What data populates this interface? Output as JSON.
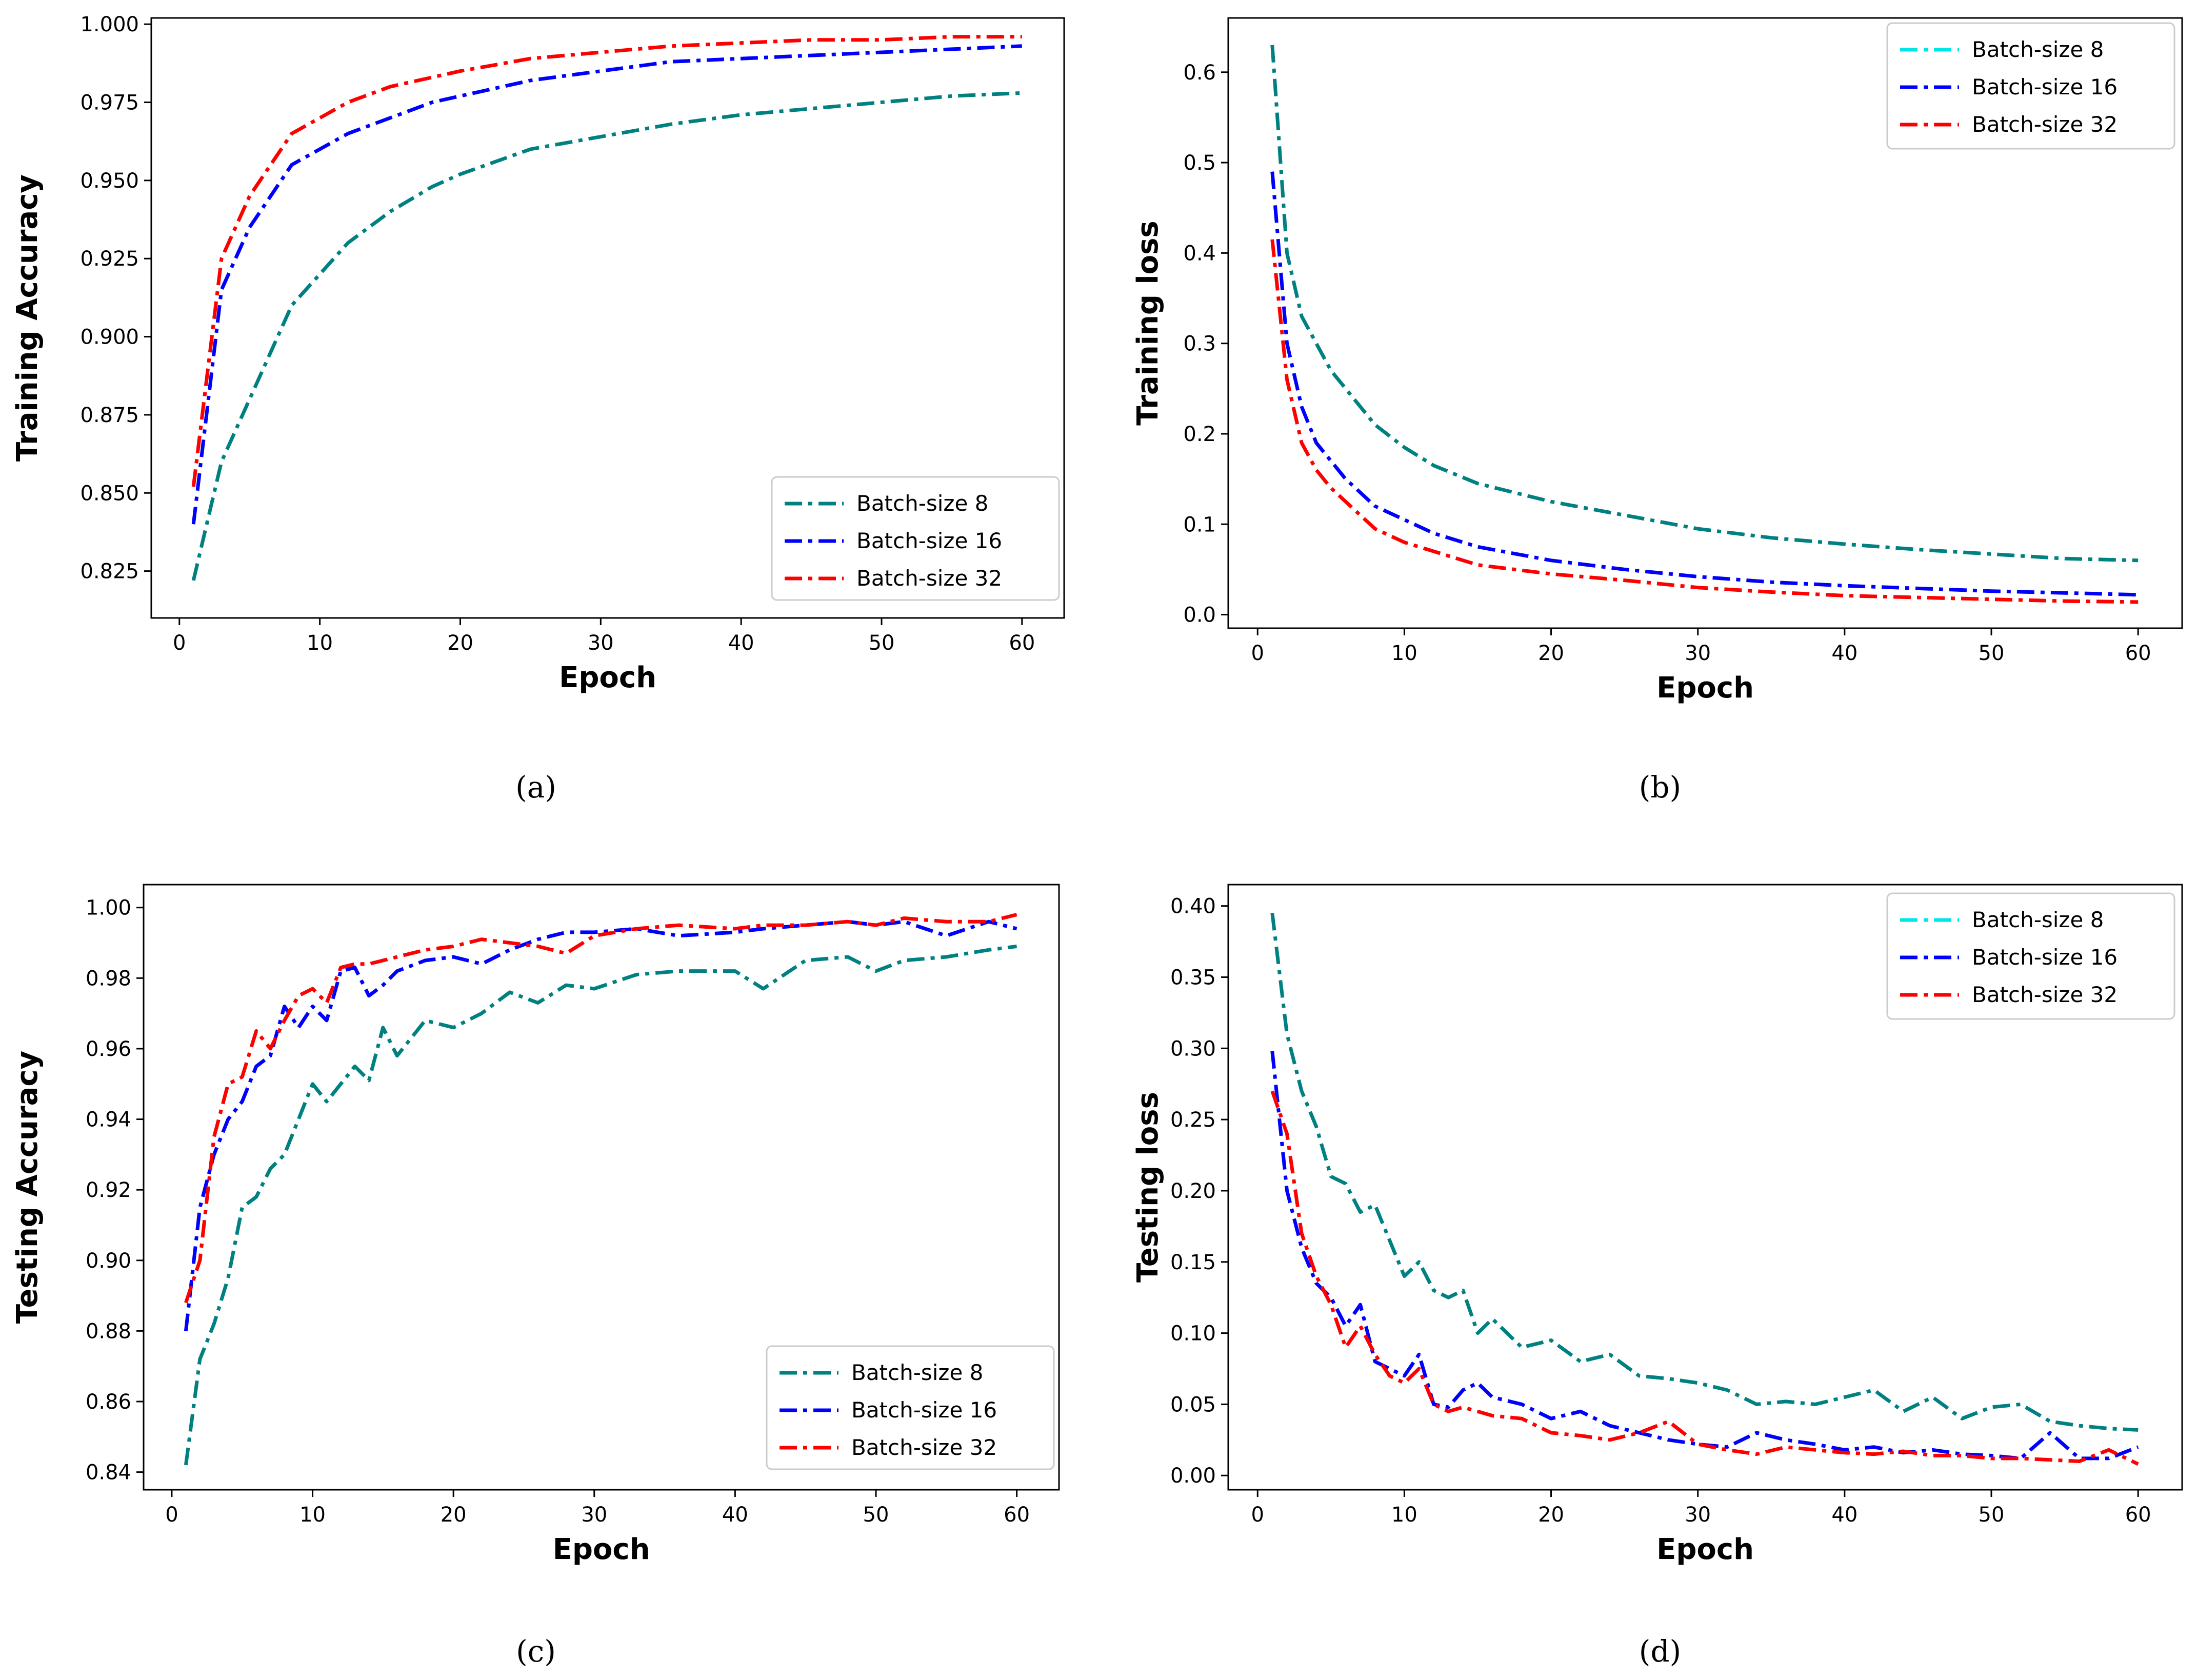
{
  "panels": [
    {
      "caption": "(a)"
    },
    {
      "caption": "(b)"
    },
    {
      "caption": "(c)"
    },
    {
      "caption": "(d)"
    }
  ],
  "colors": {
    "bs8_dark": "#008080",
    "bs8_light": "#00E5E5",
    "bs16": "#0000FF",
    "bs32": "#FF0000"
  },
  "chart_data": [
    {
      "type": "line",
      "xlabel": "Epoch",
      "ylabel": "Training Accuracy",
      "xlim": [
        -2,
        63
      ],
      "ylim": [
        0.81,
        1.002
      ],
      "xticks": [
        "0",
        "10",
        "20",
        "30",
        "40",
        "50",
        "60"
      ],
      "yticks": [
        "0.825",
        "0.850",
        "0.875",
        "0.900",
        "0.925",
        "0.950",
        "0.975",
        "1.000"
      ],
      "legend_position": "bottom-right",
      "x": [
        1,
        3,
        5,
        8,
        10,
        12,
        15,
        18,
        20,
        25,
        30,
        35,
        40,
        45,
        50,
        55,
        60
      ],
      "series": [
        {
          "name": "Batch-size 8",
          "values": [
            0.822,
            0.86,
            0.88,
            0.91,
            0.92,
            0.93,
            0.94,
            0.948,
            0.952,
            0.96,
            0.964,
            0.968,
            0.971,
            0.973,
            0.975,
            0.977,
            0.978
          ]
        },
        {
          "name": "Batch-size 16",
          "values": [
            0.84,
            0.915,
            0.935,
            0.955,
            0.96,
            0.965,
            0.97,
            0.975,
            0.977,
            0.982,
            0.985,
            0.988,
            0.989,
            0.99,
            0.991,
            0.992,
            0.993
          ]
        },
        {
          "name": "Batch-size 32",
          "values": [
            0.852,
            0.925,
            0.945,
            0.965,
            0.97,
            0.975,
            0.98,
            0.983,
            0.985,
            0.989,
            0.991,
            0.993,
            0.994,
            0.995,
            0.995,
            0.996,
            0.996
          ]
        }
      ]
    },
    {
      "type": "line",
      "xlabel": "Epoch",
      "ylabel": "Training loss",
      "xlim": [
        -2,
        63
      ],
      "ylim": [
        -0.015,
        0.66
      ],
      "xticks": [
        "0",
        "10",
        "20",
        "30",
        "40",
        "50",
        "60"
      ],
      "yticks": [
        "0.0",
        "0.1",
        "0.2",
        "0.3",
        "0.4",
        "0.5",
        "0.6"
      ],
      "legend_position": "top-right",
      "x": [
        1,
        2,
        3,
        4,
        5,
        6,
        8,
        10,
        12,
        15,
        20,
        25,
        30,
        35,
        40,
        45,
        50,
        55,
        60
      ],
      "series": [
        {
          "name": "Batch-size 8",
          "values": [
            0.63,
            0.4,
            0.33,
            0.3,
            0.27,
            0.25,
            0.21,
            0.185,
            0.165,
            0.145,
            0.125,
            0.11,
            0.095,
            0.085,
            0.078,
            0.072,
            0.067,
            0.062,
            0.06
          ]
        },
        {
          "name": "Batch-size 16",
          "values": [
            0.49,
            0.3,
            0.23,
            0.19,
            0.17,
            0.15,
            0.12,
            0.105,
            0.09,
            0.075,
            0.06,
            0.05,
            0.042,
            0.036,
            0.032,
            0.029,
            0.026,
            0.024,
            0.022
          ]
        },
        {
          "name": "Batch-size 32",
          "values": [
            0.415,
            0.26,
            0.19,
            0.16,
            0.14,
            0.125,
            0.095,
            0.08,
            0.07,
            0.055,
            0.045,
            0.038,
            0.03,
            0.025,
            0.021,
            0.019,
            0.017,
            0.015,
            0.014
          ]
        }
      ]
    },
    {
      "type": "line",
      "xlabel": "Epoch",
      "ylabel": "Testing Accuracy",
      "xlim": [
        -2,
        63
      ],
      "ylim": [
        0.835,
        1.0065
      ],
      "xticks": [
        "0",
        "10",
        "20",
        "30",
        "40",
        "50",
        "60"
      ],
      "yticks": [
        "0.84",
        "0.86",
        "0.88",
        "0.90",
        "0.92",
        "0.94",
        "0.96",
        "0.98",
        "1.00"
      ],
      "legend_position": "bottom-right",
      "x": [
        1,
        2,
        3,
        4,
        5,
        6,
        7,
        8,
        9,
        10,
        11,
        12,
        13,
        14,
        15,
        16,
        18,
        20,
        22,
        24,
        26,
        28,
        30,
        33,
        36,
        40,
        42,
        45,
        48,
        50,
        52,
        55,
        58,
        60
      ],
      "series": [
        {
          "name": "Batch-size 8",
          "values": [
            0.842,
            0.872,
            0.882,
            0.895,
            0.915,
            0.918,
            0.926,
            0.93,
            0.94,
            0.95,
            0.945,
            0.95,
            0.955,
            0.951,
            0.966,
            0.958,
            0.968,
            0.966,
            0.97,
            0.976,
            0.973,
            0.978,
            0.977,
            0.981,
            0.982,
            0.982,
            0.977,
            0.985,
            0.986,
            0.982,
            0.985,
            0.986,
            0.988,
            0.989
          ]
        },
        {
          "name": "Batch-size 16",
          "values": [
            0.88,
            0.915,
            0.93,
            0.94,
            0.945,
            0.955,
            0.958,
            0.972,
            0.966,
            0.972,
            0.968,
            0.982,
            0.983,
            0.975,
            0.978,
            0.982,
            0.985,
            0.986,
            0.984,
            0.988,
            0.991,
            0.993,
            0.993,
            0.994,
            0.992,
            0.993,
            0.994,
            0.995,
            0.996,
            0.995,
            0.996,
            0.992,
            0.996,
            0.994
          ]
        },
        {
          "name": "Batch-size 32",
          "values": [
            0.888,
            0.9,
            0.935,
            0.95,
            0.952,
            0.965,
            0.96,
            0.968,
            0.975,
            0.977,
            0.973,
            0.983,
            0.984,
            0.984,
            0.985,
            0.986,
            0.988,
            0.989,
            0.991,
            0.99,
            0.989,
            0.987,
            0.992,
            0.994,
            0.995,
            0.994,
            0.995,
            0.995,
            0.996,
            0.995,
            0.997,
            0.996,
            0.996,
            0.998
          ]
        }
      ]
    },
    {
      "type": "line",
      "xlabel": "Epoch",
      "ylabel": "Testing loss",
      "xlim": [
        -2,
        63
      ],
      "ylim": [
        -0.01,
        0.415
      ],
      "xticks": [
        "0",
        "10",
        "20",
        "30",
        "40",
        "50",
        "60"
      ],
      "yticks": [
        "0.00",
        "0.05",
        "0.10",
        "0.15",
        "0.20",
        "0.25",
        "0.30",
        "0.35",
        "0.40"
      ],
      "legend_position": "top-right",
      "x": [
        1,
        2,
        3,
        4,
        5,
        6,
        7,
        8,
        9,
        10,
        11,
        12,
        13,
        14,
        15,
        16,
        18,
        20,
        22,
        24,
        26,
        28,
        30,
        32,
        34,
        36,
        38,
        40,
        42,
        44,
        46,
        48,
        50,
        52,
        54,
        56,
        58,
        60
      ],
      "series": [
        {
          "name": "Batch-size 8",
          "values": [
            0.395,
            0.31,
            0.27,
            0.245,
            0.21,
            0.205,
            0.185,
            0.19,
            0.165,
            0.14,
            0.15,
            0.13,
            0.125,
            0.13,
            0.1,
            0.11,
            0.09,
            0.095,
            0.08,
            0.085,
            0.07,
            0.068,
            0.065,
            0.06,
            0.05,
            0.052,
            0.05,
            0.055,
            0.06,
            0.045,
            0.055,
            0.04,
            0.048,
            0.05,
            0.038,
            0.035,
            0.033,
            0.032
          ]
        },
        {
          "name": "Batch-size 16",
          "values": [
            0.298,
            0.2,
            0.16,
            0.135,
            0.125,
            0.105,
            0.12,
            0.08,
            0.075,
            0.07,
            0.085,
            0.05,
            0.048,
            0.06,
            0.065,
            0.055,
            0.05,
            0.04,
            0.045,
            0.035,
            0.03,
            0.025,
            0.022,
            0.02,
            0.03,
            0.025,
            0.022,
            0.018,
            0.02,
            0.016,
            0.018,
            0.015,
            0.014,
            0.012,
            0.03,
            0.012,
            0.012,
            0.02
          ]
        },
        {
          "name": "Batch-size 32",
          "values": [
            0.27,
            0.24,
            0.17,
            0.14,
            0.12,
            0.09,
            0.105,
            0.085,
            0.07,
            0.065,
            0.075,
            0.05,
            0.045,
            0.048,
            0.045,
            0.042,
            0.04,
            0.03,
            0.028,
            0.025,
            0.03,
            0.038,
            0.022,
            0.018,
            0.015,
            0.02,
            0.018,
            0.016,
            0.015,
            0.017,
            0.014,
            0.014,
            0.012,
            0.012,
            0.011,
            0.01,
            0.018,
            0.008
          ]
        }
      ]
    }
  ]
}
